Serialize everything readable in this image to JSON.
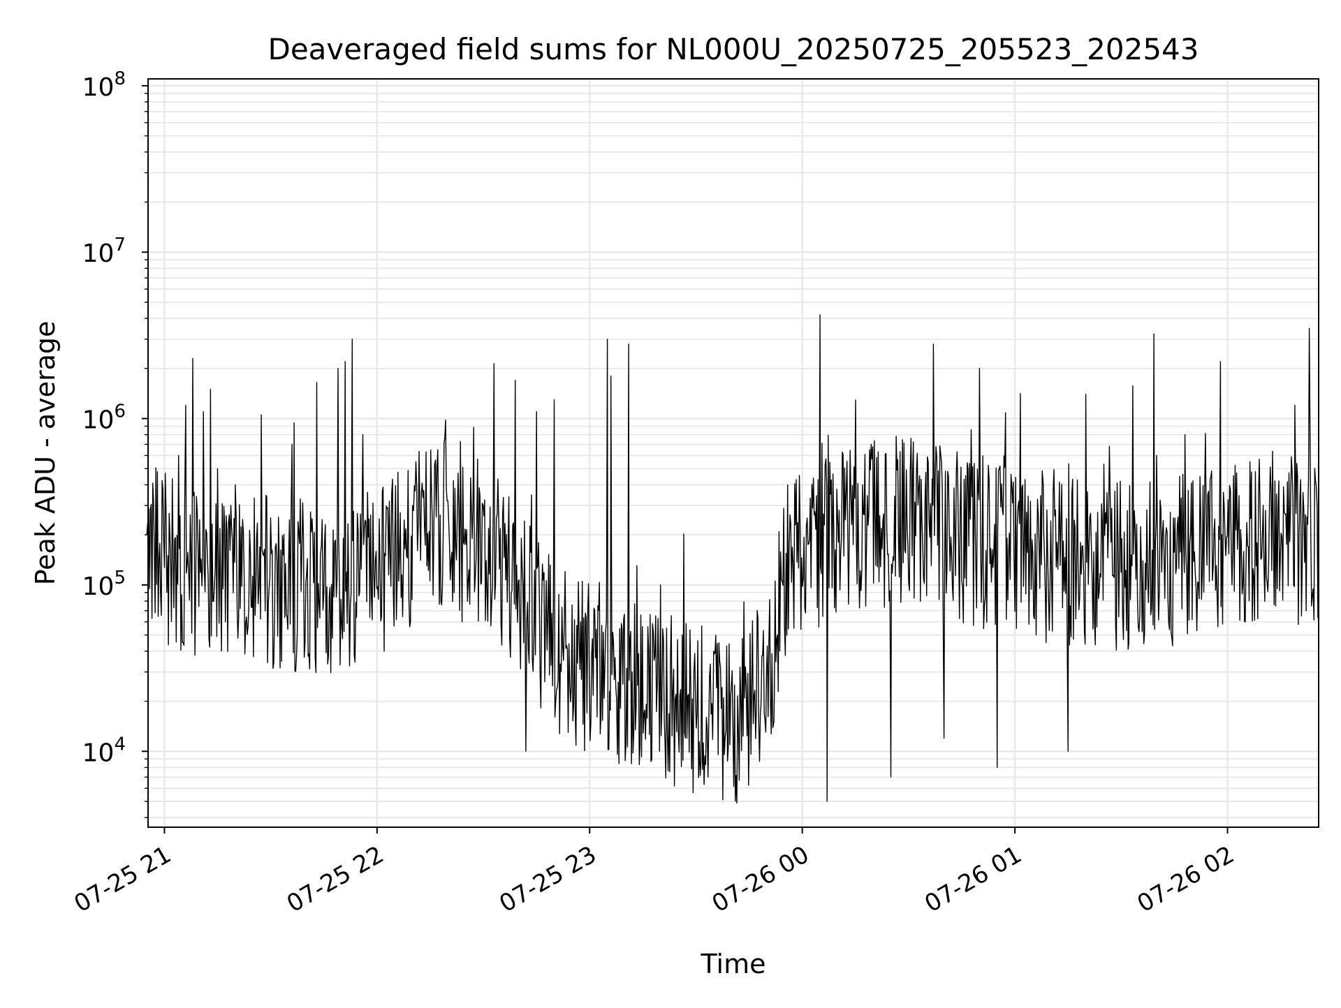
{
  "chart_data": {
    "type": "line",
    "title": "Deaveraged field sums for NL000U_20250725_205523_202543",
    "xlabel": "Time",
    "ylabel": "Peak ADU - average",
    "yscale": "log",
    "ylim": [
      3500,
      110000000
    ],
    "xlim": [
      "2025-07-25 20:55:23",
      "2025-07-26 02:25:43"
    ],
    "x_ticks": [
      {
        "value": "2025-07-25 21:00",
        "label": "07-25 21"
      },
      {
        "value": "2025-07-25 22:00",
        "label": "07-25 22"
      },
      {
        "value": "2025-07-25 23:00",
        "label": "07-25 23"
      },
      {
        "value": "2025-07-26 00:00",
        "label": "07-26 00"
      },
      {
        "value": "2025-07-26 01:00",
        "label": "07-26 01"
      },
      {
        "value": "2025-07-26 02:00",
        "label": "07-26 02"
      }
    ],
    "y_ticks": [
      {
        "value": 10000,
        "base": "10",
        "exp": "4"
      },
      {
        "value": 100000,
        "base": "10",
        "exp": "5"
      },
      {
        "value": 1000000,
        "base": "10",
        "exp": "6"
      },
      {
        "value": 10000000,
        "base": "10",
        "exp": "7"
      },
      {
        "value": 100000000,
        "base": "10",
        "exp": "8"
      }
    ],
    "grid": true,
    "line_color": "#000000",
    "grid_color": "#e5e5e5",
    "series": [
      {
        "x": [
          "2025-07-25 20:55",
          "2025-07-25 21:01",
          "2025-07-25 21:04",
          "2025-07-25 21:06",
          "2025-07-25 21:08",
          "2025-07-25 21:11",
          "2025-07-25 21:13",
          "2025-07-25 21:15",
          "2025-07-25 21:20",
          "2025-07-25 21:28",
          "2025-07-25 21:36",
          "2025-07-25 21:44",
          "2025-07-25 21:49",
          "2025-07-25 21:51",
          "2025-07-25 21:53",
          "2025-07-25 21:56",
          "2025-07-25 22:02",
          "2025-07-25 22:10",
          "2025-07-25 22:24",
          "2025-07-25 22:39",
          "2025-07-25 22:42",
          "2025-07-25 22:45",
          "2025-07-25 22:50",
          "2025-07-25 23:05",
          "2025-07-25 23:06",
          "2025-07-25 23:11",
          "2025-07-25 23:12",
          "2025-07-25 23:20",
          "2025-07-25 23:35",
          "2025-07-25 23:40",
          "2025-07-25 23:52",
          "2025-07-26 00:05",
          "2025-07-26 00:07",
          "2025-07-26 00:25",
          "2025-07-26 00:31",
          "2025-07-26 00:37",
          "2025-07-26 00:40",
          "2025-07-26 00:50",
          "2025-07-26 00:55",
          "2025-07-26 01:06",
          "2025-07-26 01:08",
          "2025-07-26 01:15",
          "2025-07-26 01:20",
          "2025-07-26 01:40",
          "2025-07-26 01:48",
          "2025-07-26 01:58",
          "2025-07-26 02:05",
          "2025-07-26 02:19",
          "2025-07-26 02:21",
          "2025-07-26 02:25"
        ],
        "values": [
          200000,
          150000,
          600000,
          1200000,
          2300000,
          1100000,
          1500000,
          500000,
          400000,
          150000,
          700000,
          150000,
          2000000,
          2200000,
          3000000,
          800000,
          40000,
          300000,
          60000,
          1700000,
          10000,
          1100000,
          1300000,
          3000000,
          1800000,
          2800000,
          30000,
          100000,
          40000,
          25000,
          15000,
          4200000,
          5000,
          7000,
          150000,
          2800000,
          12000,
          2000000,
          8000,
          50000,
          400000,
          10000,
          1400000,
          600000,
          800000,
          2200000,
          60000,
          1200000,
          100000,
          400000
        ]
      }
    ]
  }
}
